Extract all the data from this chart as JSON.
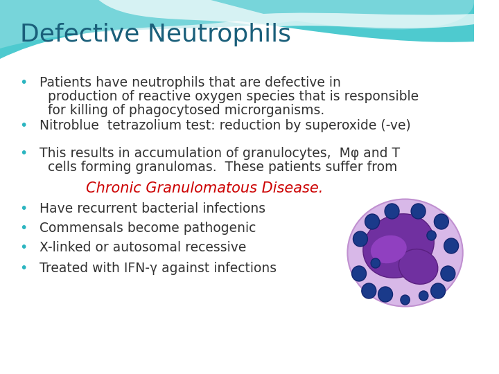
{
  "title": "Defective Neutrophils",
  "title_color": "#1a5f7a",
  "title_fontsize": 26,
  "background_color": "#ffffff",
  "header_bg_color": "#4fc8d0",
  "bullet_color": "#2bb5c0",
  "text_color": "#333333",
  "highlight_color": "#cc0000",
  "bullet_points": [
    {
      "text": "Patients have neutrophils that are defective in\n  production of reactive oxygen species that is responsible\n  for killing of phagocytosed microrganisms.",
      "indent": 0
    },
    {
      "text": "Nitroblue  tetrazolium test: reduction by superoxide (-ve)",
      "indent": 0
    },
    {
      "text": "This results in accumulation of granulocytes,  Mφ and T\n  cells forming granulomas.  These patients suffer from",
      "indent": 0
    },
    {
      "text": "Chronic Granulomatous Disease.",
      "indent": 1,
      "highlight": true
    },
    {
      "text": "Have recurrent bacterial infections",
      "indent": 0
    },
    {
      "text": "Commensals become pathogenic",
      "indent": 0
    },
    {
      "text": "X-linked or autosomal recessive",
      "indent": 0
    },
    {
      "text": "Treated with IFN-γ against infections",
      "indent": 0
    }
  ],
  "body_fontsize": 13.5,
  "highlight_fontsize": 15
}
